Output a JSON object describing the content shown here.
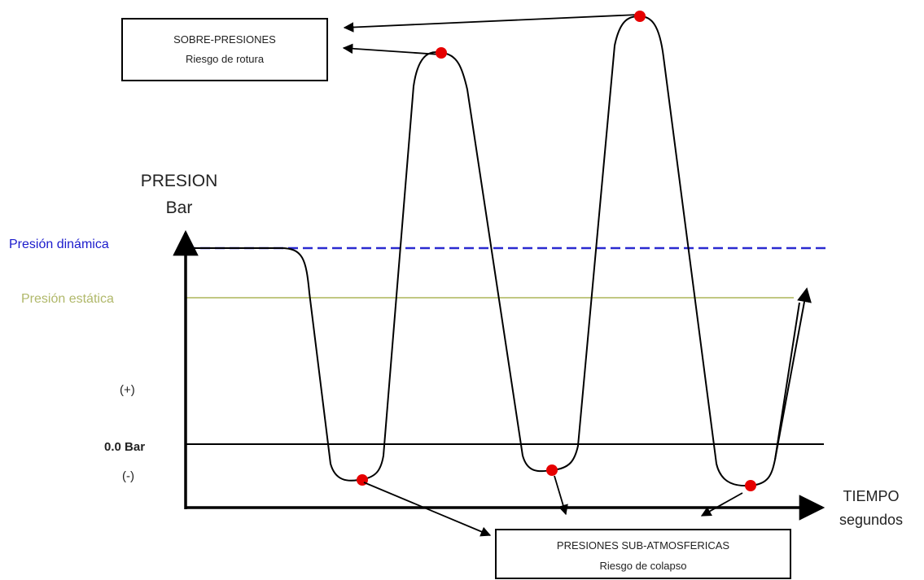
{
  "axes": {
    "y_label_line1": "PRESION",
    "y_label_line2": "Bar",
    "x_label_line1": "TIEMPO",
    "x_label_line2": "segundos"
  },
  "levels": {
    "dynamic": {
      "label": "Presión dinámica",
      "color": "#1a1acc"
    },
    "static": {
      "label": "Presión estática",
      "color": "#b0b86a"
    },
    "plus_sign": "(+)",
    "zero_label": "0.0 Bar",
    "minus_sign": "(-)"
  },
  "callouts": {
    "overpressure": {
      "title": "SOBRE-PRESIONES",
      "subtitle": "Riesgo de rotura"
    },
    "subatmospheric": {
      "title": "PRESIONES SUB-ATMOSFERICAS",
      "subtitle": "Riesgo de colapso"
    }
  },
  "colors": {
    "curve": "#000000",
    "marker": "#e60000"
  },
  "icons": [
    "arrow-icon"
  ]
}
